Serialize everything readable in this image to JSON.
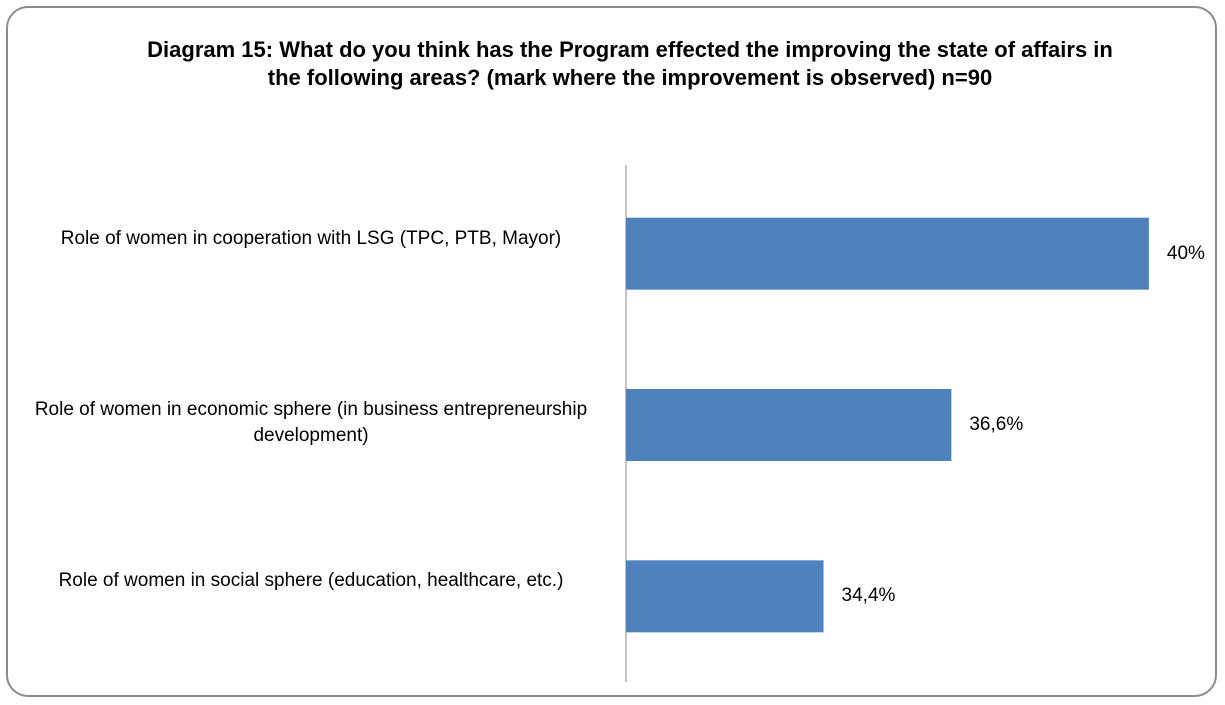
{
  "chart_data": {
    "type": "bar",
    "orientation": "horizontal",
    "title": "Diagram 15: What do you think has the Program effected the improving the state of affairs in the following areas? (mark where the improvement is observed) n=90",
    "categories": [
      "Role of women in cooperation with LSG (TPC, PTB, Mayor)",
      "Role of women in economic sphere (in business entrepreneurship development)",
      "Role of women in social sphere (education, healthcare, etc.)"
    ],
    "values": [
      40,
      36.6,
      34.4
    ],
    "value_labels": [
      "40%",
      "36,6%",
      "34,4%"
    ],
    "color": "#4f81bd",
    "xlim": [
      31,
      41
    ]
  }
}
